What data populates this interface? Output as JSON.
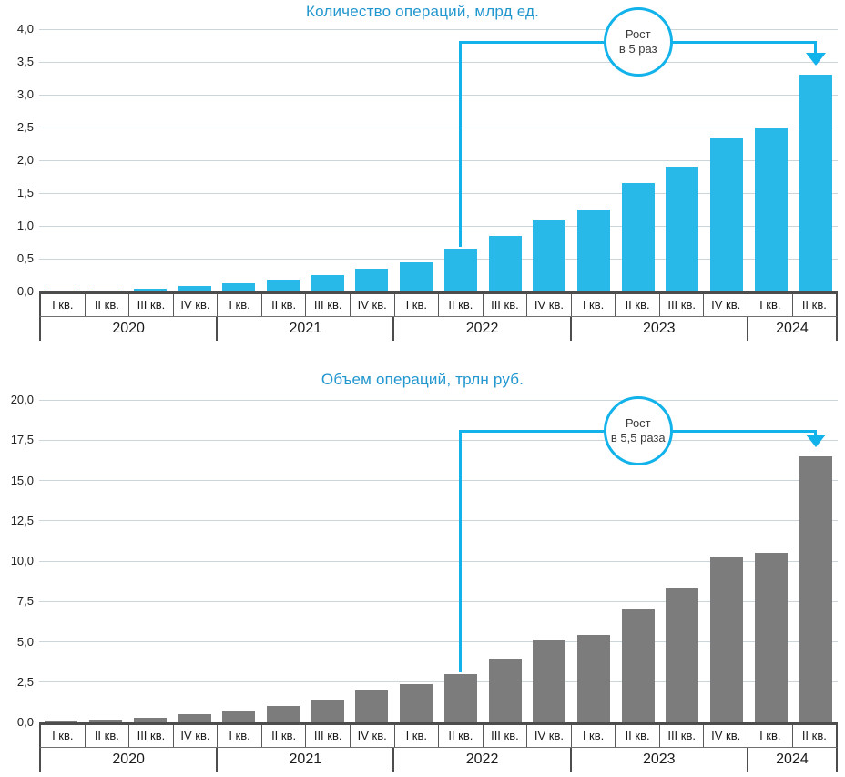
{
  "colors": {
    "count_bar": "#29b9e8",
    "volume_bar": "#7c7c7c",
    "annotation_accent": "#12b2ea",
    "title_blue": "#2196cf",
    "gridline": "#ccd5da",
    "axis_dark": "#4d4d4d"
  },
  "chart_data": [
    {
      "type": "bar",
      "title": "Количество операций, млрд ед.",
      "bar_color": "#29b9e8",
      "categories": [
        "I кв.",
        "II кв.",
        "III кв.",
        "IV кв.",
        "I кв.",
        "II кв.",
        "III кв.",
        "IV кв.",
        "I кв.",
        "II кв.",
        "III кв.",
        "IV кв.",
        "I кв.",
        "II кв.",
        "III кв.",
        "IV кв.",
        "I кв.",
        "II кв."
      ],
      "year_groups": [
        {
          "label": "2020",
          "span": 4
        },
        {
          "label": "2021",
          "span": 4
        },
        {
          "label": "2022",
          "span": 4
        },
        {
          "label": "2023",
          "span": 4
        },
        {
          "label": "2024",
          "span": 2
        }
      ],
      "values": [
        0.01,
        0.02,
        0.04,
        0.08,
        0.12,
        0.18,
        0.25,
        0.35,
        0.45,
        0.65,
        0.85,
        1.1,
        1.25,
        1.65,
        1.9,
        2.35,
        2.5,
        3.3
      ],
      "ylim": [
        0,
        4
      ],
      "ytick_labels": [
        "0,0",
        "0,5",
        "1,0",
        "1,5",
        "2,0",
        "2,5",
        "3,0",
        "3,5",
        "4,0"
      ],
      "grid": true,
      "legend": "none",
      "annotation": {
        "line1": "Рост",
        "line2": "в 5 раз",
        "from_category_index": 9,
        "to_category_index": 17
      }
    },
    {
      "type": "bar",
      "title": "Объем операций, трлн руб.",
      "bar_color": "#7c7c7c",
      "categories": [
        "I кв.",
        "II кв.",
        "III кв.",
        "IV кв.",
        "I кв.",
        "II кв.",
        "III кв.",
        "IV кв.",
        "I кв.",
        "II кв.",
        "III кв.",
        "IV кв.",
        "I кв.",
        "II кв.",
        "III кв.",
        "IV кв.",
        "I кв.",
        "II кв."
      ],
      "year_groups": [
        {
          "label": "2020",
          "span": 4
        },
        {
          "label": "2021",
          "span": 4
        },
        {
          "label": "2022",
          "span": 4
        },
        {
          "label": "2023",
          "span": 4
        },
        {
          "label": "2024",
          "span": 2
        }
      ],
      "values": [
        0.1,
        0.15,
        0.3,
        0.5,
        0.7,
        1.0,
        1.4,
        2.0,
        2.4,
        3.0,
        3.9,
        5.1,
        5.4,
        7.0,
        8.3,
        10.3,
        10.5,
        16.5
      ],
      "ylim": [
        0,
        20
      ],
      "ytick_labels": [
        "0,0",
        "2,5",
        "5,0",
        "7,5",
        "10,0",
        "12,5",
        "15,0",
        "17,5",
        "20,0"
      ],
      "grid": true,
      "legend": "none",
      "annotation": {
        "line1": "Рост",
        "line2": "в 5,5 раза",
        "from_category_index": 9,
        "to_category_index": 17
      }
    }
  ]
}
